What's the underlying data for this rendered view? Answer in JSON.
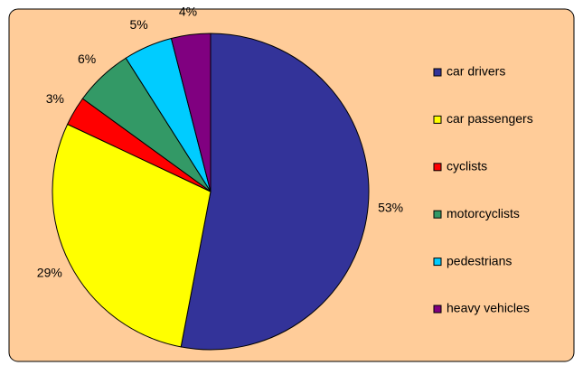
{
  "chart_data": {
    "type": "pie",
    "categories": [
      "car drivers",
      "car passengers",
      "cyclists",
      "motorcyclists",
      "pedestrians",
      "heavy vehicles"
    ],
    "values": [
      53,
      29,
      3,
      6,
      5,
      4
    ],
    "value_labels": [
      "53%",
      "29%",
      "3%",
      "6%",
      "5%",
      "4%"
    ],
    "colors": [
      "#333399",
      "#FFFF00",
      "#FF0000",
      "#339966",
      "#00CCFF",
      "#800080"
    ],
    "legend": "right"
  }
}
